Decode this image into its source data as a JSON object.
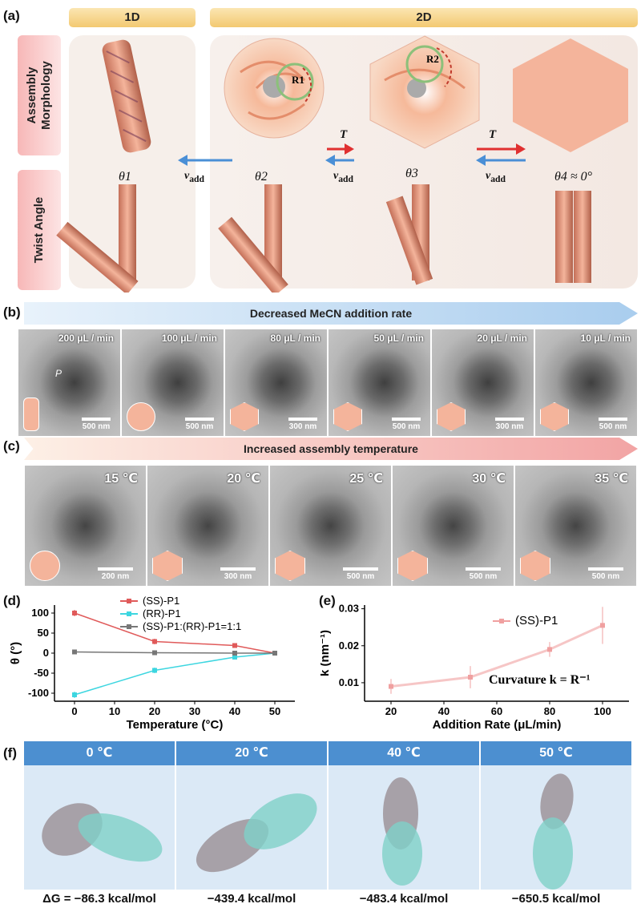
{
  "panel_labels": {
    "a": "(a)",
    "b": "(b)",
    "c": "(c)",
    "d": "(d)",
    "e": "(e)",
    "f": "(f)"
  },
  "panel_a": {
    "header_1d": "1D",
    "header_2d": "2D",
    "row1_label": "Assembly Morphology",
    "row2_label": "Twist Angle",
    "theta_labels": [
      "θ1",
      "θ2",
      "θ3",
      "θ4 ≈ 0°"
    ],
    "radius_labels": [
      "R1",
      "R2"
    ],
    "temp_symbol": "T",
    "vadd_label": "v",
    "vadd_sub": "add"
  },
  "panel_b": {
    "banner": "Decreased MeCN addition rate",
    "images": [
      {
        "rate": "200 μL / min",
        "scale": "500 nm",
        "marker": "P"
      },
      {
        "rate": "100 μL / min",
        "scale": "500 nm"
      },
      {
        "rate": "80 μL / min",
        "scale": "300 nm"
      },
      {
        "rate": "50 μL / min",
        "scale": "500 nm"
      },
      {
        "rate": "20 μL / min",
        "scale": "300 nm"
      },
      {
        "rate": "10 μL / min",
        "scale": "500 nm"
      }
    ]
  },
  "panel_c": {
    "banner": "Increased assembly temperature",
    "images": [
      {
        "temp": "15 ℃",
        "scale": "200 nm"
      },
      {
        "temp": "20 ℃",
        "scale": "300 nm"
      },
      {
        "temp": "25 ℃",
        "scale": "500 nm"
      },
      {
        "temp": "30 ℃",
        "scale": "500 nm"
      },
      {
        "temp": "35 ℃",
        "scale": "500 nm"
      }
    ]
  },
  "chart_data": [
    {
      "type": "line",
      "title": "",
      "xlabel": "Temperature (°C)",
      "ylabel": "θ (°)",
      "xlim": [
        -5,
        55
      ],
      "ylim": [
        -120,
        120
      ],
      "xticks": [
        0,
        10,
        20,
        30,
        40,
        50
      ],
      "yticks": [
        100,
        50,
        0,
        -50,
        -100
      ],
      "x": [
        0,
        20,
        40,
        50
      ],
      "series": [
        {
          "name": "(SS)-P1",
          "values": [
            100,
            29,
            19,
            0
          ],
          "errors": [
            8,
            7,
            5,
            2
          ],
          "color": "#e05a5a"
        },
        {
          "name": "(RR)-P1",
          "values": [
            -104,
            -43,
            -10,
            0
          ],
          "errors": [
            8,
            7,
            6,
            2
          ],
          "color": "#3dd6e0"
        },
        {
          "name": "(SS)-P1:(RR)-P1=1:1",
          "values": [
            3,
            1,
            0,
            0
          ],
          "errors": [
            1,
            1,
            1,
            1
          ],
          "color": "#777777"
        }
      ]
    },
    {
      "type": "line",
      "title": "",
      "xlabel": "Addition Rate (μL/min)",
      "ylabel": "k (nm⁻¹)",
      "xlim": [
        10,
        110
      ],
      "ylim": [
        0.005,
        0.031
      ],
      "xticks": [
        20,
        40,
        60,
        80,
        100
      ],
      "yticks": [
        0.01,
        0.02,
        0.03
      ],
      "annotation": "Curvature k = R⁻¹",
      "x": [
        20,
        50,
        80,
        100
      ],
      "series": [
        {
          "name": "(SS)-P1",
          "values": [
            0.009,
            0.0115,
            0.019,
            0.0255
          ],
          "errors": [
            0.002,
            0.003,
            0.002,
            0.005
          ],
          "color": "#f0a0a0"
        }
      ]
    }
  ],
  "panel_f": {
    "columns": [
      {
        "temp": "0 ℃",
        "energy": "ΔG = −86.3 kcal/mol"
      },
      {
        "temp": "20 ℃",
        "energy": "−439.4 kcal/mol"
      },
      {
        "temp": "40 ℃",
        "energy": "−483.4 kcal/mol"
      },
      {
        "temp": "50 ℃",
        "energy": "−650.5 kcal/mol"
      }
    ]
  }
}
